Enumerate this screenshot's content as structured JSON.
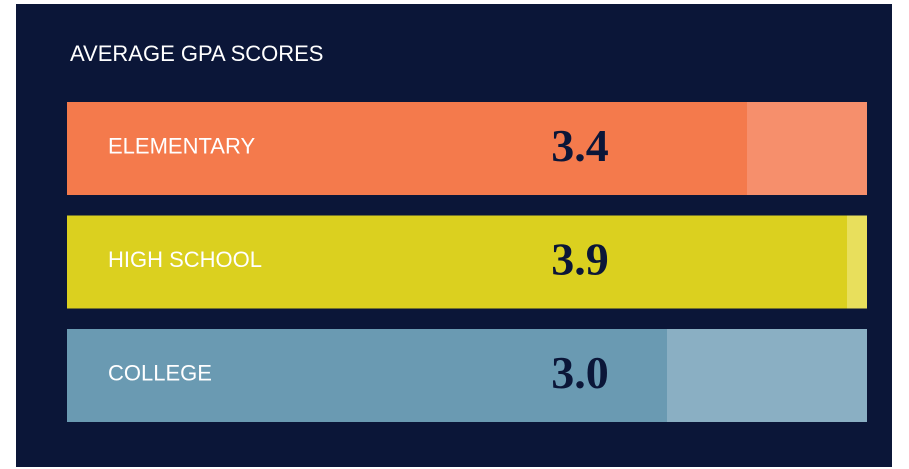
{
  "chart_data": {
    "type": "bar",
    "orientation": "horizontal",
    "title": "AVERAGE GPA SCORES",
    "categories": [
      "ELEMENTARY",
      "HIGH SCHOOL",
      "COLLEGE"
    ],
    "values": [
      3.4,
      3.9,
      3.0
    ],
    "value_labels": [
      "3.4",
      "3.9",
      "3.0"
    ],
    "colors": [
      "#f47a4c",
      "#dbd01f",
      "#6a9ab2"
    ],
    "track_colors": [
      "#f68f6c",
      "#e8df5c",
      "#8aafc3"
    ],
    "xlim": [
      0,
      4
    ]
  }
}
